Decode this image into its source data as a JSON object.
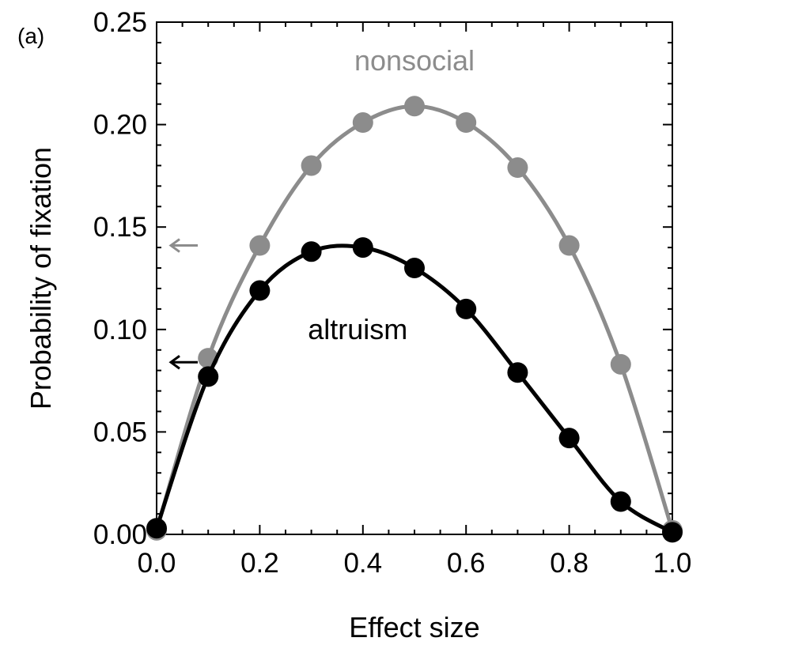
{
  "chart_data": {
    "type": "line",
    "panel_label": "(a)",
    "title": "",
    "xlabel": "Effect size",
    "ylabel": "Probability of fixation",
    "xlim": [
      0,
      1
    ],
    "ylim": [
      0,
      0.25
    ],
    "x_ticks": [
      "0.0",
      "0.2",
      "0.4",
      "0.6",
      "0.8",
      "1.0"
    ],
    "y_ticks": [
      "0.00",
      "0.05",
      "0.10",
      "0.15",
      "0.20",
      "0.25"
    ],
    "grid": false,
    "series": [
      {
        "name": "nonsocial",
        "color": "#8c8c8c",
        "x": [
          0.0,
          0.1,
          0.2,
          0.3,
          0.4,
          0.5,
          0.6,
          0.7,
          0.8,
          0.9,
          1.0
        ],
        "y": [
          0.002,
          0.086,
          0.141,
          0.18,
          0.201,
          0.209,
          0.201,
          0.179,
          0.141,
          0.083,
          0.002
        ],
        "reference_arrow_y": 0.141
      },
      {
        "name": "altruism",
        "color": "#000000",
        "x": [
          0.0,
          0.1,
          0.2,
          0.3,
          0.4,
          0.5,
          0.6,
          0.7,
          0.8,
          0.9,
          1.0
        ],
        "y": [
          0.003,
          0.077,
          0.119,
          0.138,
          0.14,
          0.13,
          0.11,
          0.079,
          0.047,
          0.016,
          0.001
        ],
        "reference_arrow_y": 0.084
      }
    ]
  }
}
